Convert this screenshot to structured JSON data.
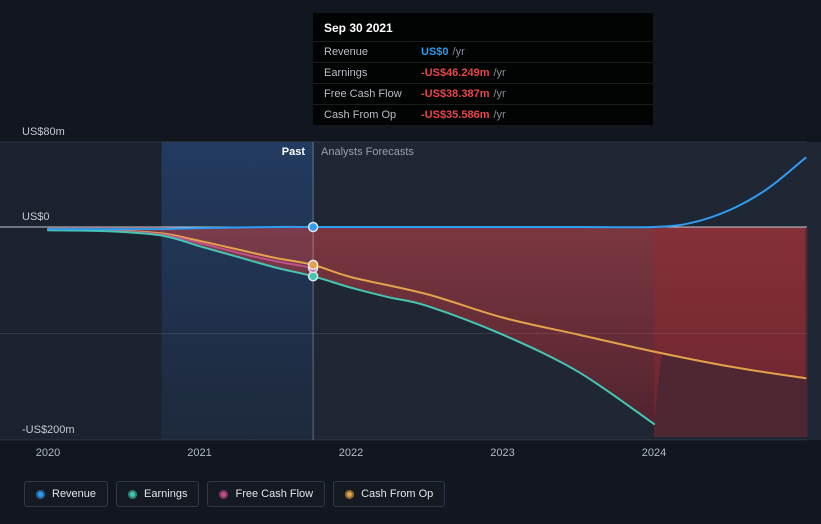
{
  "tooltip": {
    "date": "Sep 30 2021",
    "rows": [
      {
        "label": "Revenue",
        "value": "US$0",
        "suffix": "/yr",
        "value_color": "#2b9af3"
      },
      {
        "label": "Earnings",
        "value": "-US$46.249m",
        "suffix": "/yr",
        "value_color": "#e5484d"
      },
      {
        "label": "Free Cash Flow",
        "value": "-US$38.387m",
        "suffix": "/yr",
        "value_color": "#e5484d"
      },
      {
        "label": "Cash From Op",
        "value": "-US$35.586m",
        "suffix": "/yr",
        "value_color": "#e5484d"
      }
    ]
  },
  "annotations": {
    "past_label": "Past",
    "forecast_label": "Analysts Forecasts"
  },
  "legend": [
    {
      "label": "Revenue",
      "color": "#2f9df2"
    },
    {
      "label": "Earnings",
      "color": "#45c6b2"
    },
    {
      "label": "Free Cash Flow",
      "color": "#c0508c"
    },
    {
      "label": "Cash From Op",
      "color": "#e3a24b"
    }
  ],
  "chart_data": {
    "type": "line",
    "unit": "US$ millions per year",
    "x_axis": {
      "ticks": [
        2020,
        2021,
        2022,
        2023,
        2024
      ],
      "labels": [
        "2020",
        "2021",
        "2022",
        "2023",
        "2024"
      ],
      "range": [
        2020,
        2025
      ]
    },
    "y_axis": {
      "ticks": [
        80,
        0,
        -200
      ],
      "labels": [
        "US$80m",
        "US$0",
        "-US$200m"
      ],
      "range": [
        -200,
        80
      ],
      "gridlines": [
        80,
        0,
        -100,
        -200
      ]
    },
    "divider": {
      "x": 2021.75,
      "past_band_start": 2020.75
    },
    "markers_at": 2021.75,
    "series": [
      {
        "name": "Revenue",
        "color": "#2f9df2",
        "x": [
          2020,
          2020.5,
          2020.75,
          2021,
          2021.5,
          2021.75,
          2022,
          2022.5,
          2023,
          2023.5,
          2024,
          2024.25,
          2024.5,
          2024.75,
          2025
        ],
        "values": [
          -2,
          -2,
          -2,
          -1,
          0,
          0,
          0,
          0,
          0,
          0,
          0,
          4,
          16,
          36,
          65
        ]
      },
      {
        "name": "Earnings",
        "color": "#45c6b2",
        "x": [
          2020,
          2020.4,
          2020.75,
          2021,
          2021.25,
          2021.5,
          2021.75,
          2022,
          2022.25,
          2022.5,
          2023,
          2023.5,
          2024
        ],
        "values": [
          -3,
          -4,
          -8,
          -18,
          -28,
          -38,
          -46.249,
          -57,
          -66,
          -74,
          -101,
          -136,
          -185
        ]
      },
      {
        "name": "Free Cash Flow",
        "color": "#c0508c",
        "x": [
          2020,
          2020.4,
          2020.75,
          2021,
          2021.25,
          2021.5,
          2021.75
        ],
        "values": [
          -2.5,
          -3.5,
          -7,
          -15,
          -24,
          -32,
          -38.387
        ]
      },
      {
        "name": "Cash From Op",
        "color": "#e3a24b",
        "x": [
          2020,
          2020.4,
          2020.75,
          2021,
          2021.25,
          2021.5,
          2021.75,
          2022,
          2022.5,
          2023,
          2023.5,
          2024,
          2024.5,
          2025
        ],
        "values": [
          -2,
          -3,
          -6,
          -13,
          -21,
          -29,
          -35.586,
          -47,
          -63,
          -85,
          -101,
          -117,
          -131,
          -142
        ]
      }
    ]
  }
}
